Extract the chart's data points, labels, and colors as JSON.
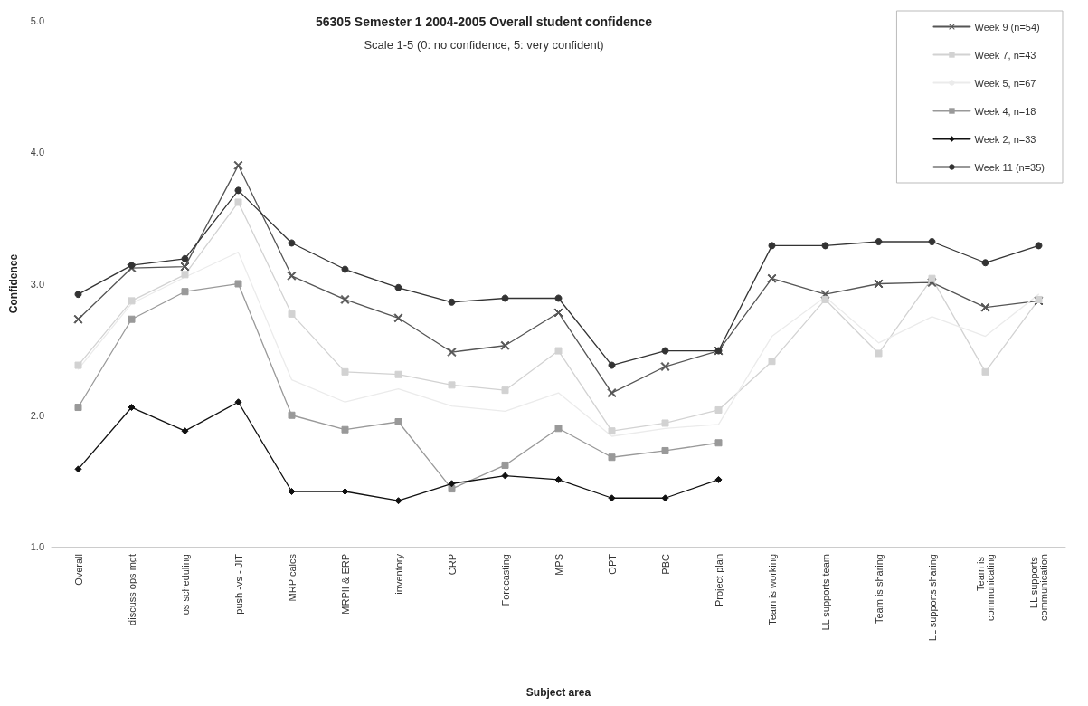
{
  "chart_data": {
    "type": "line",
    "title": "56305 Semester 1 2004-2005 Overall student confidence",
    "subtitle": "Scale 1-5 (0: no confidence, 5: very confident)",
    "xlabel": "Subject area",
    "ylabel": "Confidence",
    "categories": [
      "Overall",
      "discuss ops mgt",
      "os scheduling",
      "push -vs - JIT",
      "MRP calcs",
      "MRPII & ERP",
      "inventory",
      "CRP",
      "Forecasting",
      "MPS",
      "OPT",
      "PBC",
      "Project plan",
      "Team is working",
      "LL supports team",
      "Team is sharing",
      "LL supports sharing",
      "Team is communicating",
      "LL supports communication"
    ],
    "series": [
      {
        "name": "Week 9 (n=54)",
        "color": "#555555",
        "marker": "cross",
        "values": [
          2.73,
          3.12,
          3.13,
          3.9,
          3.06,
          2.88,
          2.74,
          2.48,
          2.53,
          2.78,
          2.17,
          2.37,
          2.49,
          3.04,
          2.92,
          3.0,
          3.01,
          2.82,
          2.87
        ]
      },
      {
        "name": "Week 7, n=43",
        "color": "#d2d2d2",
        "marker": "square",
        "values": [
          2.38,
          2.87,
          3.07,
          3.62,
          2.77,
          2.33,
          2.31,
          2.23,
          2.19,
          2.49,
          1.88,
          1.94,
          2.04,
          2.41,
          2.88,
          2.47,
          3.04,
          2.33,
          2.88
        ]
      },
      {
        "name": "Week 5, n=67",
        "color": "#ebebeb",
        "marker": "none",
        "values": [
          2.35,
          2.85,
          3.05,
          3.24,
          2.27,
          2.1,
          2.2,
          2.07,
          2.03,
          2.17,
          1.84,
          1.9,
          1.93,
          2.6,
          2.9,
          2.55,
          2.75,
          2.6,
          2.92
        ]
      },
      {
        "name": "Week 4, n=18",
        "color": "#999999",
        "marker": "square",
        "values": [
          2.06,
          2.73,
          2.94,
          3.0,
          2.0,
          1.89,
          1.95,
          1.44,
          1.62,
          1.9,
          1.68,
          1.73,
          1.79,
          null,
          null,
          null,
          null,
          null,
          null
        ]
      },
      {
        "name": "Week 2, n=33",
        "color": "#111111",
        "marker": "diamond",
        "values": [
          1.59,
          2.06,
          1.88,
          2.1,
          1.42,
          1.42,
          1.35,
          1.48,
          1.54,
          1.51,
          1.37,
          1.37,
          1.51,
          null,
          null,
          null,
          null,
          null,
          null
        ]
      },
      {
        "name": "Week 11 (n=35)",
        "color": "#333333",
        "marker": "circle",
        "values": [
          2.92,
          3.14,
          3.19,
          3.71,
          3.31,
          3.11,
          2.97,
          2.86,
          2.89,
          2.89,
          2.38,
          2.49,
          2.49,
          3.29,
          3.29,
          3.32,
          3.32,
          3.16,
          3.29
        ]
      }
    ],
    "ylim": [
      1,
      5
    ],
    "yticks": [
      {
        "value": 1,
        "label": "1.0"
      },
      {
        "value": 2,
        "label": "2.0"
      },
      {
        "value": 3,
        "label": "3.0"
      },
      {
        "value": 4,
        "label": "4.0"
      },
      {
        "value": 5,
        "label": "5.0"
      }
    ],
    "grid": false,
    "legend": "top right",
    "line_style": "solid"
  }
}
